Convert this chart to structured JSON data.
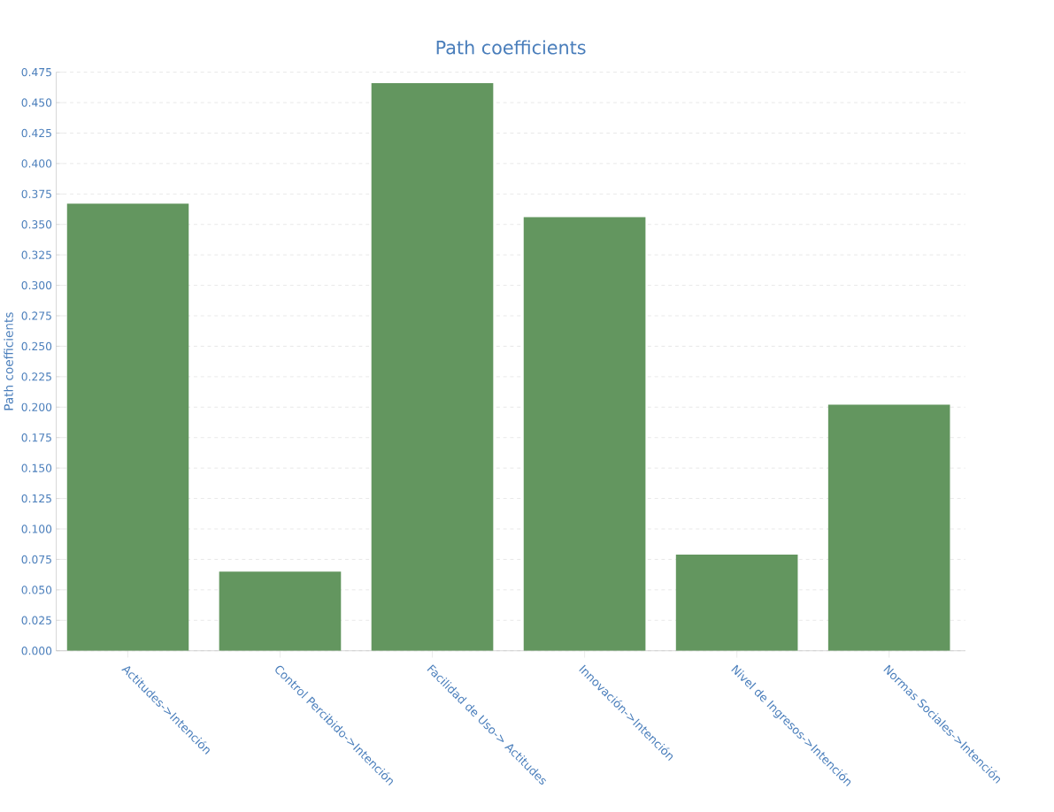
{
  "chart_data": {
    "type": "bar",
    "title": "Path coefficients",
    "ylabel": "Path coefficients",
    "categories": [
      "Actitudes->Intención",
      "Control Percibido->Intención",
      "Facilidad de Uso-> Actitudes",
      "Innovación->Intención",
      "Nivel de Ingresos->Intención",
      "Normas Sociales->Intención"
    ],
    "values": [
      0.367,
      0.065,
      0.466,
      0.356,
      0.079,
      0.202
    ],
    "color": "#63965f",
    "ylim": [
      0,
      0.475
    ],
    "yticks": [
      {
        "value": 0,
        "label": "0.000"
      },
      {
        "value": 0.025,
        "label": "0.025"
      },
      {
        "value": 0.05,
        "label": "0.050"
      },
      {
        "value": 0.075,
        "label": "0.075"
      },
      {
        "value": 0.1,
        "label": "0.100"
      },
      {
        "value": 0.125,
        "label": "0.125"
      },
      {
        "value": 0.15,
        "label": "0.150"
      },
      {
        "value": 0.175,
        "label": "0.175"
      },
      {
        "value": 0.2,
        "label": "0.200"
      },
      {
        "value": 0.225,
        "label": "0.225"
      },
      {
        "value": 0.25,
        "label": "0.250"
      },
      {
        "value": 0.275,
        "label": "0.275"
      },
      {
        "value": 0.3,
        "label": "0.300"
      },
      {
        "value": 0.325,
        "label": "0.325"
      },
      {
        "value": 0.35,
        "label": "0.350"
      },
      {
        "value": 0.375,
        "label": "0.375"
      },
      {
        "value": 0.4,
        "label": "0.400"
      },
      {
        "value": 0.425,
        "label": "0.425"
      },
      {
        "value": 0.45,
        "label": "0.450"
      },
      {
        "value": 0.475,
        "label": "0.475"
      }
    ],
    "grid": "y"
  }
}
